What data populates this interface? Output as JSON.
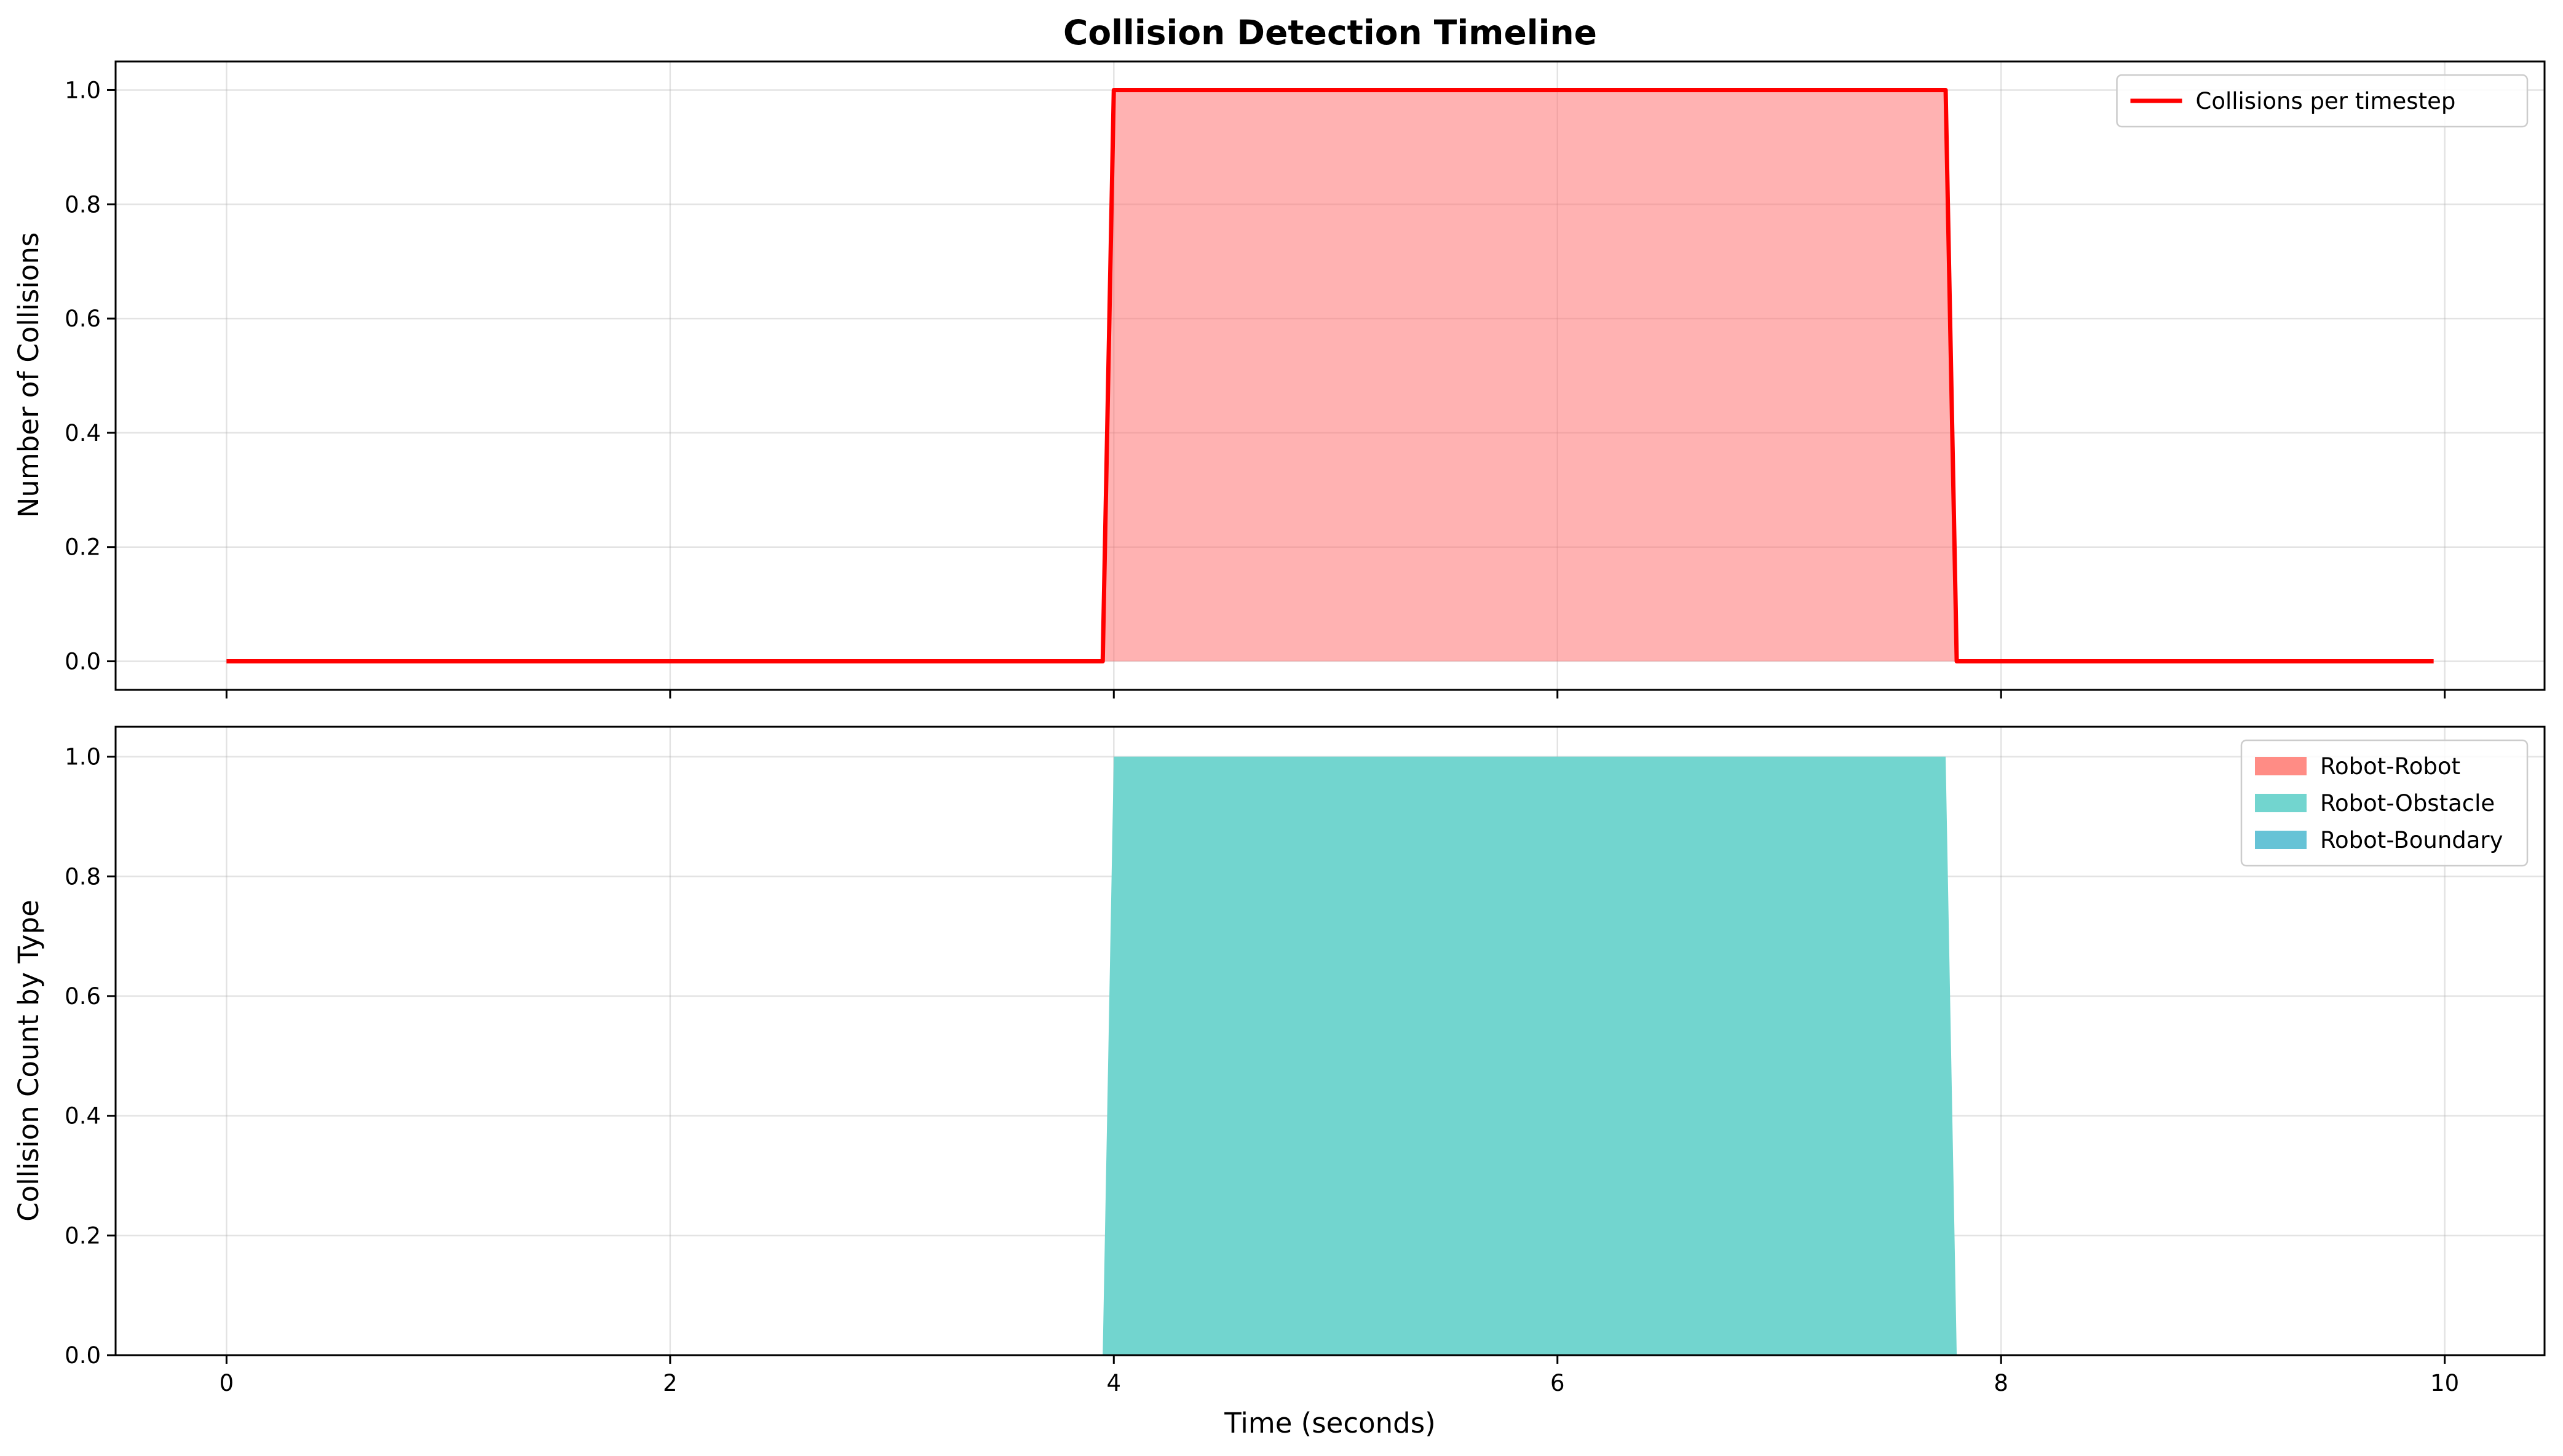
{
  "chart_data": [
    {
      "type": "line",
      "title": "Collision Detection Timeline",
      "xlabel": "",
      "ylabel": "Number of Collisions",
      "xlim": [
        -0.5,
        10.45
      ],
      "ylim": [
        -0.05,
        1.05
      ],
      "grid": true,
      "legend_position": "top-right",
      "x_ticks": [
        "0",
        "2",
        "4",
        "6",
        "8",
        "10"
      ],
      "y_ticks": [
        "0.0",
        "0.2",
        "0.4",
        "0.6",
        "0.8",
        "1.0"
      ],
      "series": [
        {
          "name": "Collisions per timestep",
          "color": "#ff0000",
          "fill_color": "#ff6b6b",
          "fill": true,
          "x": [
            0,
            3.95,
            4.0,
            7.75,
            7.8,
            9.95
          ],
          "y": [
            0,
            0,
            1,
            1,
            0,
            0
          ]
        }
      ]
    },
    {
      "type": "area",
      "title": "",
      "xlabel": "Time (seconds)",
      "ylabel": "Collision Count by Type",
      "xlim": [
        -0.5,
        10.45
      ],
      "ylim": [
        0,
        1.05
      ],
      "grid": true,
      "legend_position": "top-right",
      "stacked": true,
      "x_ticks": [
        "0",
        "2",
        "4",
        "6",
        "8",
        "10"
      ],
      "y_ticks": [
        "0.0",
        "0.2",
        "0.4",
        "0.6",
        "0.8",
        "1.0"
      ],
      "x": [
        0,
        3.95,
        4.0,
        7.75,
        7.8,
        9.95
      ],
      "series": [
        {
          "name": "Robot-Robot",
          "color": "#ff8c85",
          "values": [
            0,
            0,
            0,
            0,
            0,
            0
          ]
        },
        {
          "name": "Robot-Obstacle",
          "color": "#72d5cf",
          "values": [
            0,
            0,
            1,
            1,
            0,
            0
          ]
        },
        {
          "name": "Robot-Boundary",
          "color": "#66c3d6",
          "values": [
            0,
            0,
            0,
            0,
            0,
            0
          ]
        }
      ]
    }
  ]
}
